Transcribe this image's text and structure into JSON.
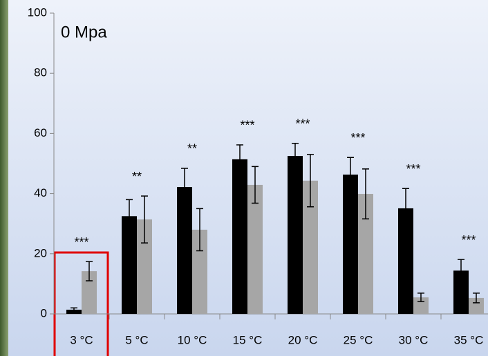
{
  "chart_data": {
    "type": "bar",
    "annotation": "0 Mpa",
    "categories": [
      "3 °C",
      "5 °C",
      "10 °C",
      "15 °C",
      "20 °C",
      "25 °C",
      "30 °C",
      "35 °C"
    ],
    "series": [
      {
        "color": "#000000",
        "values": [
          1.4,
          32.5,
          42.2,
          51.4,
          52.5,
          46.3,
          35.1,
          14.4
        ],
        "errors": [
          0.6,
          5.5,
          6.2,
          4.8,
          4.2,
          5.7,
          6.6,
          3.7
        ]
      },
      {
        "color": "#a6a6a6",
        "values": [
          14.2,
          31.4,
          28,
          42.9,
          44.3,
          39.9,
          5.5,
          5.3
        ],
        "errors": [
          3.2,
          7.8,
          7,
          6.1,
          8.7,
          8.3,
          1.4,
          1.6
        ]
      }
    ],
    "significance": [
      "***",
      "**",
      "**",
      "***",
      "***",
      "***",
      "***",
      "***"
    ],
    "ylim": [
      0,
      100
    ],
    "yticks": [
      0,
      20,
      40,
      60,
      80,
      100
    ]
  }
}
